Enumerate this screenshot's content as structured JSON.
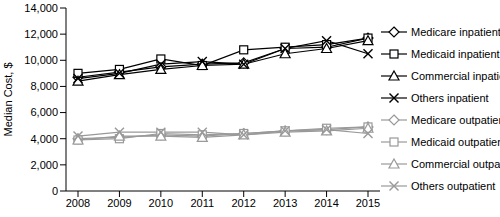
{
  "chart_data": {
    "type": "line",
    "y_label": "Median Cost, $",
    "categories": [
      "2008",
      "2009",
      "2010",
      "2011",
      "2012",
      "2013",
      "2014",
      "2015"
    ],
    "ylim": [
      0,
      14000
    ],
    "yticks": [
      0,
      {
        "value": 2000,
        "label": "2,000"
      },
      {
        "value": 4000,
        "label": "4,000"
      },
      {
        "value": 6000,
        "label": "6,000"
      },
      {
        "value": 8000,
        "label": "8,000"
      },
      {
        "value": 10000,
        "label": "10,000"
      },
      {
        "value": 12000,
        "label": "12,000"
      },
      {
        "value": 14000,
        "label": "14,000"
      }
    ],
    "grid": false,
    "legend": "right",
    "series": [
      {
        "name": "Medicare inpatient",
        "color": "#000000",
        "marker": "diamond",
        "values": [
          8700,
          9100,
          9500,
          9700,
          9800,
          10900,
          11000,
          11700
        ]
      },
      {
        "name": "Medicaid inpatient",
        "color": "#000000",
        "marker": "square",
        "values": [
          9000,
          9300,
          10100,
          9600,
          10800,
          11000,
          11200,
          11700
        ]
      },
      {
        "name": "Commercial inpatient",
        "color": "#000000",
        "marker": "triangle",
        "values": [
          8400,
          8900,
          9300,
          9600,
          9700,
          10500,
          10900,
          11500
        ]
      },
      {
        "name": "Others inpatient",
        "color": "#000000",
        "marker": "cross",
        "values": [
          8600,
          9000,
          9700,
          9900,
          9700,
          10900,
          11500,
          10500
        ]
      },
      {
        "name": "Medicare outpatient",
        "color": "#999999",
        "marker": "diamond",
        "values": [
          4000,
          4100,
          4300,
          4200,
          4400,
          4600,
          4700,
          4900
        ]
      },
      {
        "name": "Medicaid outpatient",
        "color": "#999999",
        "marker": "square",
        "values": [
          3900,
          4000,
          4400,
          4300,
          4400,
          4600,
          4800,
          4900
        ]
      },
      {
        "name": "Commercial outpatient",
        "color": "#999999",
        "marker": "triangle",
        "values": [
          3900,
          4200,
          4200,
          4100,
          4300,
          4500,
          4600,
          4800
        ]
      },
      {
        "name": "Others outpatient",
        "color": "#999999",
        "marker": "cross",
        "values": [
          4200,
          4500,
          4500,
          4500,
          4300,
          4600,
          4700,
          4400
        ]
      }
    ]
  }
}
